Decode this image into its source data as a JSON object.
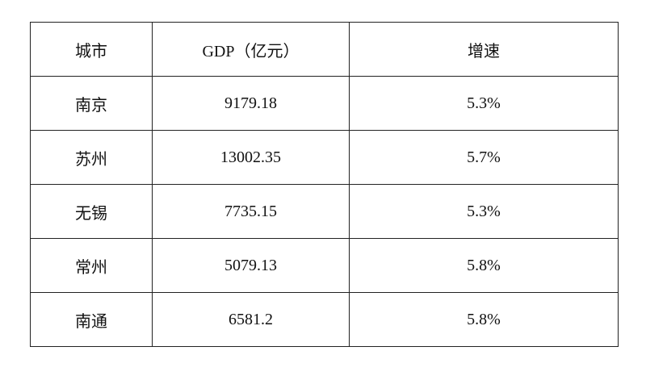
{
  "table": {
    "header": [
      "城市",
      "GDP（亿元）",
      "增速"
    ],
    "rows": [
      [
        "南京",
        "9179.18",
        "5.3%"
      ],
      [
        "苏州",
        "13002.35",
        "5.7%"
      ],
      [
        "无锡",
        "7735.15",
        "5.3%"
      ],
      [
        "常州",
        "5079.13",
        "5.8%"
      ],
      [
        "南通",
        "6581.2",
        "5.8%"
      ]
    ]
  }
}
